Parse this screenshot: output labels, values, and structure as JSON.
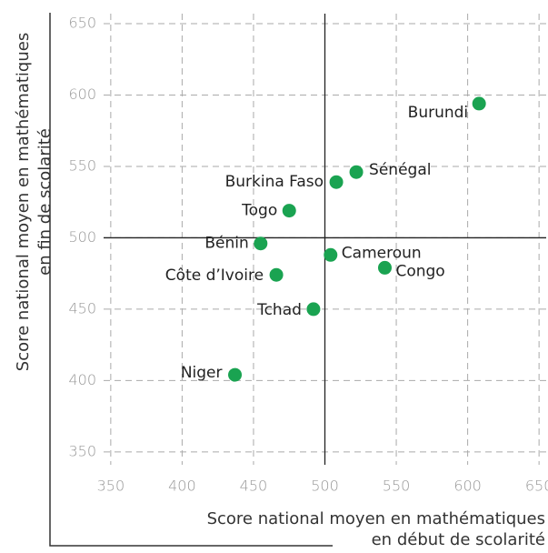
{
  "chart_data": {
    "type": "scatter",
    "x_label": [
      "Score national moyen en mathématiques",
      "en début de scolarité"
    ],
    "y_label": [
      "Score national moyen en mathématiques",
      "en fin de scolarité"
    ],
    "series": [
      {
        "name": null,
        "color": "#1aa351",
        "labels": [
          "Burundi",
          "Sénégal",
          "Burkina Faso",
          "Togo",
          "Bénin",
          "Cameroun",
          "Congo",
          "Côte d’Ivoire",
          "Tchad",
          "Niger"
        ],
        "x": [
          608,
          522,
          508,
          475,
          455,
          504,
          542,
          466,
          492,
          437
        ],
        "values": [
          594,
          546,
          539,
          519,
          496,
          488,
          479,
          474,
          450,
          404
        ]
      }
    ],
    "reference_lines": {
      "x": 500,
      "y": 500
    },
    "xlim": [
      345,
      655
    ],
    "xticks": [
      350,
      400,
      450,
      500,
      550,
      600,
      650
    ],
    "ylim": [
      341,
      657
    ],
    "yticks": [
      350,
      400,
      450,
      500,
      550,
      600,
      650
    ],
    "grid": true
  }
}
